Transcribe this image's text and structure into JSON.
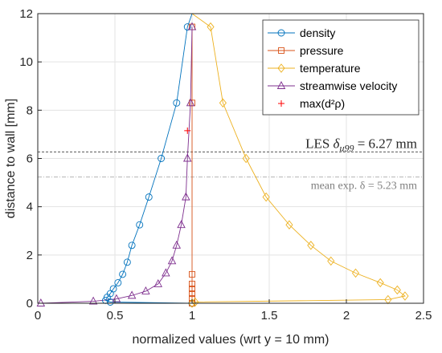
{
  "chart_data": {
    "type": "line",
    "title": "",
    "xlabel": "normalized values (wrt y = 10 mm)",
    "ylabel": "distance to wall [mm]",
    "xlim": [
      0,
      2.5
    ],
    "ylim": [
      0,
      12
    ],
    "xticks": [
      0,
      0.5,
      1,
      1.5,
      2,
      2.5
    ],
    "yticks": [
      0,
      2,
      4,
      6,
      8,
      10,
      12
    ],
    "xtick_labels": [
      "0",
      "0.5",
      "1",
      "1.5",
      "2",
      "2.5"
    ],
    "ytick_labels": [
      "0",
      "2",
      "4",
      "6",
      "8",
      "10",
      "12"
    ],
    "grid": true,
    "legend_position": "top-right",
    "series": [
      {
        "name": "density",
        "color": "#0072BD",
        "marker": "circle",
        "x": [
          1.0,
          0.47,
          0.44,
          0.45,
          0.47,
          0.49,
          0.52,
          0.55,
          0.58,
          0.61,
          0.66,
          0.72,
          0.8,
          0.9,
          0.97,
          1.0
        ],
        "y": [
          0.0,
          0.05,
          0.12,
          0.25,
          0.4,
          0.6,
          0.85,
          1.2,
          1.7,
          2.4,
          3.25,
          4.4,
          6.0,
          8.3,
          11.45,
          12.0
        ]
      },
      {
        "name": "pressure",
        "color": "#D95319",
        "marker": "square",
        "x": [
          1.0,
          1.0,
          1.0,
          1.0,
          1.0,
          1.0,
          1.0,
          1.0
        ],
        "y": [
          0.0,
          0.2,
          0.4,
          0.6,
          0.8,
          1.2,
          8.3,
          11.45
        ]
      },
      {
        "name": "temperature",
        "color": "#EDB120",
        "marker": "diamond",
        "x": [
          1.0,
          1.02,
          2.27,
          2.38,
          2.33,
          2.22,
          2.06,
          1.9,
          1.77,
          1.63,
          1.48,
          1.35,
          1.2,
          1.12,
          1.0,
          1.0
        ],
        "y": [
          0.0,
          0.05,
          0.15,
          0.3,
          0.55,
          0.85,
          1.25,
          1.75,
          2.4,
          3.25,
          4.4,
          6.0,
          8.3,
          11.45,
          12.0,
          12.0
        ]
      },
      {
        "name": "streamwise velocity",
        "color": "#7E2F8E",
        "marker": "triangle",
        "x": [
          0.02,
          0.36,
          0.51,
          0.61,
          0.7,
          0.78,
          0.83,
          0.87,
          0.9,
          0.93,
          0.96,
          0.97,
          0.99,
          1.0
        ],
        "y": [
          0.0,
          0.08,
          0.18,
          0.32,
          0.5,
          0.8,
          1.25,
          1.75,
          2.4,
          3.25,
          4.4,
          6.0,
          8.3,
          11.45
        ]
      },
      {
        "name": "max(d²ρ)",
        "color": "#FF0000",
        "marker": "plus",
        "x": [
          0.97
        ],
        "y": [
          7.15
        ]
      }
    ],
    "reference_lines": [
      {
        "y": 6.27,
        "style": "dashed",
        "color": "#555555",
        "label_main": "LES ",
        "label_symbol": "δ",
        "label_sub": "u99",
        "label_rest": " = 6.27 mm"
      },
      {
        "y": 5.23,
        "style": "dashdot",
        "color": "#aaaaaa",
        "label": "mean exp. δ = 5.23 mm"
      }
    ]
  }
}
